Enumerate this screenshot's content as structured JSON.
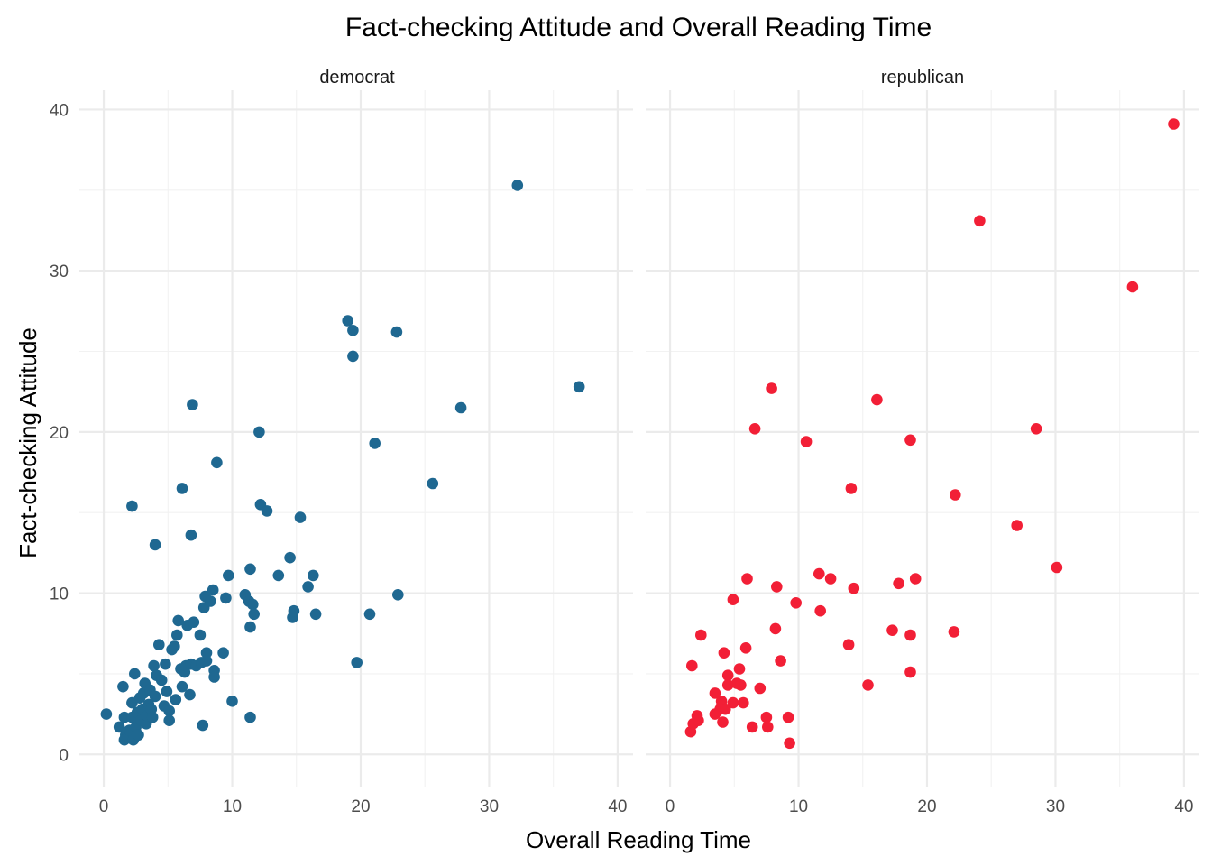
{
  "chart_data": {
    "type": "scatter",
    "title": "Fact-checking Attitude and Overall Reading Time",
    "xlabel": "Overall Reading Time",
    "ylabel": "Fact-checking Attitude",
    "xlim": [
      -1.9,
      41.2
    ],
    "ylim": [
      -2.0,
      41.2
    ],
    "x_ticks": [
      0,
      10,
      20,
      30,
      40
    ],
    "y_ticks": [
      0,
      10,
      20,
      30,
      40
    ],
    "grid": true,
    "legend": "none",
    "facets": [
      {
        "name": "democrat",
        "color": "#1f6891",
        "points": [
          [
            0.2,
            2.5
          ],
          [
            1.2,
            1.7
          ],
          [
            1.5,
            4.2
          ],
          [
            1.6,
            2.3
          ],
          [
            1.7,
            1.2
          ],
          [
            1.6,
            0.9
          ],
          [
            2.0,
            1.5
          ],
          [
            2.2,
            2.3
          ],
          [
            2.3,
            0.9
          ],
          [
            2.2,
            3.2
          ],
          [
            2.4,
            5.0
          ],
          [
            2.5,
            1.7
          ],
          [
            2.6,
            2.6
          ],
          [
            2.7,
            1.2
          ],
          [
            2.8,
            3.5
          ],
          [
            2.9,
            2.1
          ],
          [
            3.0,
            2.8
          ],
          [
            3.1,
            3.8
          ],
          [
            3.2,
            4.4
          ],
          [
            3.3,
            1.9
          ],
          [
            3.4,
            2.4
          ],
          [
            3.5,
            3.1
          ],
          [
            3.6,
            4.0
          ],
          [
            3.7,
            2.8
          ],
          [
            3.8,
            2.3
          ],
          [
            3.9,
            5.5
          ],
          [
            4.0,
            3.6
          ],
          [
            4.1,
            4.9
          ],
          [
            4.3,
            6.8
          ],
          [
            4.5,
            4.6
          ],
          [
            4.7,
            3.0
          ],
          [
            4.8,
            5.6
          ],
          [
            4.9,
            3.9
          ],
          [
            5.1,
            2.7
          ],
          [
            5.1,
            2.1
          ],
          [
            5.3,
            6.5
          ],
          [
            5.5,
            6.7
          ],
          [
            5.6,
            3.4
          ],
          [
            5.7,
            7.4
          ],
          [
            5.8,
            8.3
          ],
          [
            6.0,
            5.3
          ],
          [
            6.1,
            4.2
          ],
          [
            6.3,
            5.1
          ],
          [
            6.4,
            5.5
          ],
          [
            6.5,
            8.0
          ],
          [
            6.7,
            3.7
          ],
          [
            6.8,
            5.6
          ],
          [
            7.0,
            8.2
          ],
          [
            7.2,
            5.5
          ],
          [
            7.5,
            7.4
          ],
          [
            7.6,
            5.7
          ],
          [
            7.7,
            1.8
          ],
          [
            7.8,
            9.1
          ],
          [
            7.9,
            9.8
          ],
          [
            8.0,
            6.3
          ],
          [
            8.0,
            5.8
          ],
          [
            8.3,
            9.5
          ],
          [
            8.5,
            10.2
          ],
          [
            8.6,
            5.2
          ],
          [
            8.6,
            4.8
          ],
          [
            8.8,
            18.1
          ],
          [
            9.3,
            6.3
          ],
          [
            9.5,
            9.7
          ],
          [
            9.7,
            11.1
          ],
          [
            10.0,
            3.3
          ],
          [
            11.0,
            9.9
          ],
          [
            11.3,
            9.5
          ],
          [
            11.4,
            2.3
          ],
          [
            11.4,
            11.5
          ],
          [
            11.4,
            7.9
          ],
          [
            11.6,
            9.3
          ],
          [
            11.7,
            8.7
          ],
          [
            12.1,
            20.0
          ],
          [
            12.2,
            15.5
          ],
          [
            12.7,
            15.1
          ],
          [
            13.6,
            11.1
          ],
          [
            14.5,
            12.2
          ],
          [
            14.7,
            8.5
          ],
          [
            14.8,
            8.9
          ],
          [
            15.3,
            14.7
          ],
          [
            15.9,
            10.4
          ],
          [
            16.3,
            11.1
          ],
          [
            16.5,
            8.7
          ],
          [
            19.0,
            26.9
          ],
          [
            19.4,
            26.3
          ],
          [
            19.4,
            24.7
          ],
          [
            19.7,
            5.7
          ],
          [
            20.7,
            8.7
          ],
          [
            21.1,
            19.3
          ],
          [
            22.8,
            26.2
          ],
          [
            22.9,
            9.9
          ],
          [
            25.6,
            16.8
          ],
          [
            27.8,
            21.5
          ],
          [
            32.2,
            35.3
          ],
          [
            37.0,
            22.8
          ],
          [
            6.9,
            21.7
          ],
          [
            6.1,
            16.5
          ],
          [
            6.8,
            13.6
          ],
          [
            4.0,
            13.0
          ],
          [
            2.2,
            15.4
          ]
        ]
      },
      {
        "name": "republican",
        "color": "#f21f36",
        "points": [
          [
            1.6,
            1.4
          ],
          [
            1.8,
            1.9
          ],
          [
            1.7,
            5.5
          ],
          [
            2.1,
            2.4
          ],
          [
            2.2,
            2.1
          ],
          [
            2.4,
            7.4
          ],
          [
            3.5,
            3.8
          ],
          [
            3.5,
            2.5
          ],
          [
            3.9,
            2.8
          ],
          [
            4.0,
            3.3
          ],
          [
            4.0,
            3.0
          ],
          [
            4.1,
            2.0
          ],
          [
            4.2,
            6.3
          ],
          [
            4.3,
            2.8
          ],
          [
            4.5,
            4.9
          ],
          [
            4.5,
            4.3
          ],
          [
            4.9,
            3.2
          ],
          [
            4.9,
            9.6
          ],
          [
            5.2,
            4.4
          ],
          [
            5.4,
            5.3
          ],
          [
            5.5,
            4.3
          ],
          [
            5.7,
            3.2
          ],
          [
            5.9,
            6.6
          ],
          [
            6.0,
            10.9
          ],
          [
            6.4,
            1.7
          ],
          [
            6.6,
            20.2
          ],
          [
            7.0,
            4.1
          ],
          [
            7.5,
            2.3
          ],
          [
            7.6,
            1.7
          ],
          [
            7.9,
            22.7
          ],
          [
            8.2,
            7.8
          ],
          [
            8.3,
            10.4
          ],
          [
            8.6,
            5.8
          ],
          [
            9.2,
            2.3
          ],
          [
            9.3,
            0.7
          ],
          [
            9.8,
            9.4
          ],
          [
            10.6,
            19.4
          ],
          [
            11.6,
            11.2
          ],
          [
            11.7,
            8.9
          ],
          [
            12.5,
            10.9
          ],
          [
            13.9,
            6.8
          ],
          [
            14.1,
            16.5
          ],
          [
            14.3,
            10.3
          ],
          [
            15.4,
            4.3
          ],
          [
            16.1,
            22.0
          ],
          [
            17.3,
            7.7
          ],
          [
            17.8,
            10.6
          ],
          [
            18.7,
            7.4
          ],
          [
            18.7,
            19.5
          ],
          [
            18.7,
            5.1
          ],
          [
            19.1,
            10.9
          ],
          [
            22.1,
            7.6
          ],
          [
            22.2,
            16.1
          ],
          [
            24.1,
            33.1
          ],
          [
            27.0,
            14.2
          ],
          [
            28.5,
            20.2
          ],
          [
            30.1,
            11.6
          ],
          [
            36.0,
            29.0
          ],
          [
            39.2,
            39.1
          ]
        ]
      }
    ]
  }
}
